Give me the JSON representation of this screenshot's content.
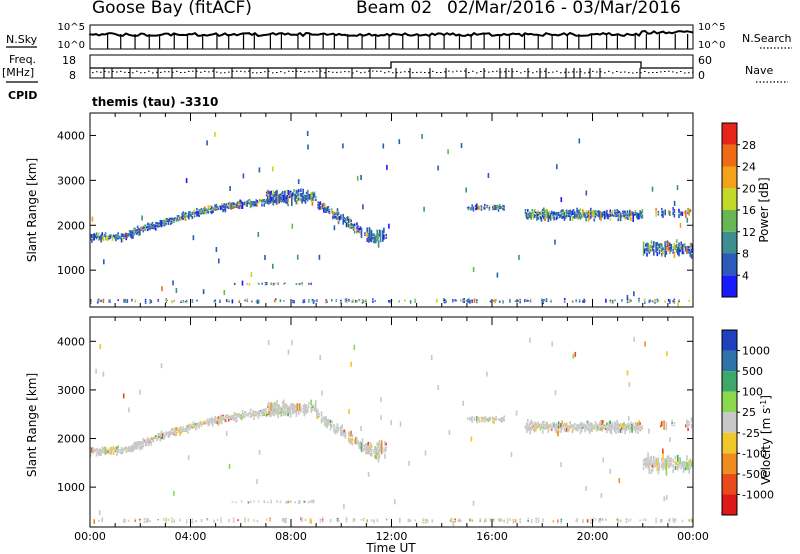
{
  "header": {
    "station": "Goose Bay (fitACF)",
    "beam": "Beam 02",
    "dates": "02/Mar/2016 - 03/Mar/2016"
  },
  "noise_panel": {
    "left_label": "N.Sky",
    "right_label": "N.Search",
    "ticks": [
      "10^5",
      "10^0"
    ]
  },
  "freq_panel": {
    "label_line1": "Freq.",
    "label_line2": "[MHz]",
    "right_label": "Nave",
    "left_ticks": [
      "18",
      "8"
    ],
    "right_ticks": [
      "60",
      "0"
    ]
  },
  "cpid": {
    "label": "CPID",
    "program": "themis (tau)",
    "value": "-3310"
  },
  "chart_data": [
    {
      "type": "heatmap",
      "title": "Power",
      "ylabel": "Slant Range [km]",
      "yticks": [
        "1000",
        "2000",
        "3000",
        "4000"
      ],
      "ylim": [
        180,
        4500
      ],
      "colorbar": {
        "label": "Power [dB]",
        "ticks": [
          "4",
          "8",
          "12",
          "16",
          "20",
          "24",
          "28"
        ],
        "range": [
          0,
          32
        ],
        "colors": [
          "#1a1aff",
          "#2d59b8",
          "#3d8f8f",
          "#67b854",
          "#c4d827",
          "#f4a21b",
          "#ef6a14",
          "#e8241a"
        ]
      }
    },
    {
      "type": "heatmap",
      "title": "Velocity",
      "ylabel": "Slant Range [km]",
      "yticks": [
        "1000",
        "2000",
        "3000",
        "4000"
      ],
      "ylim": [
        180,
        4500
      ],
      "colorbar": {
        "label": "Velocity [m s^-1]",
        "ticks": [
          "1000",
          "500",
          "100",
          "25",
          "-25",
          "-100",
          "-500",
          "-1000"
        ],
        "colors": [
          "#2040c0",
          "#2f73a8",
          "#3da86a",
          "#8bd84c",
          "#c8c8c8",
          "#f0c82a",
          "#f08c1e",
          "#e84a1a",
          "#dd1818"
        ]
      }
    }
  ],
  "xaxis": {
    "label": "Time UT",
    "ticks": [
      "00:00",
      "04:00",
      "08:00",
      "12:00",
      "16:00",
      "20:00",
      "00:00"
    ]
  }
}
